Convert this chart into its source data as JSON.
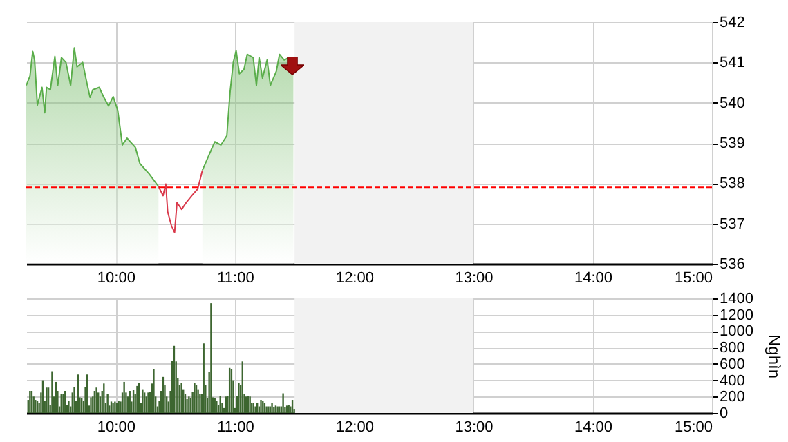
{
  "chart_data": [
    {
      "type": "area",
      "xlim": [
        9.25,
        15
      ],
      "xticks": [
        {
          "value": 10,
          "label": "10:00"
        },
        {
          "value": 11,
          "label": "11:00"
        },
        {
          "value": 12,
          "label": "12:00"
        },
        {
          "value": 13,
          "label": "13:00"
        },
        {
          "value": 14,
          "label": "14:00"
        },
        {
          "value": 15,
          "label": "15:00"
        }
      ],
      "ylim": [
        536,
        542
      ],
      "yticks": [
        536,
        537,
        538,
        539,
        540,
        541,
        542
      ],
      "grid": true,
      "ref_lines": [
        {
          "axis": "y",
          "value": 537.9,
          "color": "#ff0000",
          "line_style": "dashed"
        }
      ],
      "bands": [
        {
          "axis": "x",
          "from": 11.5,
          "to": 13,
          "color": "#f2f2f2"
        }
      ],
      "series": [
        {
          "type": "area",
          "color": "#5aad4a",
          "x": [
            9.25,
            9.281,
            9.304,
            9.32,
            9.343,
            9.382,
            9.405,
            9.42,
            9.452,
            9.49,
            9.514,
            9.545,
            9.583,
            9.622,
            9.653,
            9.676,
            9.723,
            9.754,
            9.785,
            9.808,
            9.862,
            9.901,
            9.94,
            9.979,
            10.017,
            10.056,
            10.095,
            10.165,
            10.203,
            10.281,
            10.359,
            10.397,
            10.42,
            10.436,
            10.467,
            10.494,
            10.514,
            10.553,
            10.591,
            10.638,
            10.688,
            10.727,
            10.785,
            10.831,
            10.882,
            10.932,
            10.959,
            10.986,
            11.01,
            11.037,
            11.076,
            11.103,
            11.153,
            11.18,
            11.203,
            11.231,
            11.27,
            11.297,
            11.347,
            11.374,
            11.413,
            11.452,
            11.49
          ],
          "values": [
            540.43,
            540.66,
            541.27,
            541.06,
            539.94,
            540.38,
            539.75,
            540.38,
            540.32,
            541.15,
            540.43,
            541.12,
            541.0,
            540.43,
            541.36,
            540.89,
            541.0,
            540.55,
            540.13,
            540.32,
            540.38,
            540.13,
            539.92,
            540.15,
            539.81,
            538.95,
            539.12,
            538.89,
            538.49,
            538.23,
            537.92,
            null,
            null,
            null,
            null,
            null,
            null,
            null,
            null,
            null,
            null,
            538.32,
            538.72,
            539.03,
            538.95,
            539.18,
            540.26,
            541.0,
            541.29,
            540.72,
            540.83,
            541.2,
            541.12,
            540.43,
            541.12,
            540.61,
            541.06,
            540.43,
            540.78,
            541.2,
            541.06,
            541.12,
            540.72
          ]
        },
        {
          "type": "line",
          "color": "#d9384a",
          "x": [
            10.359,
            10.397,
            10.42,
            10.436,
            10.467,
            10.494,
            10.514,
            10.553,
            10.591,
            10.638,
            10.688,
            10.727
          ],
          "values": [
            537.92,
            537.69,
            537.98,
            537.29,
            536.95,
            536.78,
            537.52,
            537.35,
            537.52,
            537.69,
            537.86,
            538.32
          ]
        }
      ]
    },
    {
      "type": "bar",
      "ylabel": "Nghìn",
      "xlim": [
        9.25,
        15
      ],
      "xticks": [
        {
          "value": 10,
          "label": "10:00"
        },
        {
          "value": 11,
          "label": "11:00"
        },
        {
          "value": 12,
          "label": "12:00"
        },
        {
          "value": 13,
          "label": "13:00"
        },
        {
          "value": 14,
          "label": "14:00"
        },
        {
          "value": 15,
          "label": "15:00"
        }
      ],
      "ylim": [
        0,
        1400
      ],
      "yticks": [
        0,
        200,
        400,
        600,
        800,
        1000,
        1200,
        1400
      ],
      "grid": true,
      "bands": [
        {
          "axis": "x",
          "from": 11.5,
          "to": 13,
          "color": "#f2f2f2"
        }
      ],
      "series": [
        {
          "color": "#3d6630",
          "x": [
            9.266,
            9.281,
            9.296,
            9.312,
            9.327,
            9.343,
            9.358,
            9.374,
            9.389,
            9.405,
            9.421,
            9.436,
            9.451,
            9.467,
            9.482,
            9.498,
            9.513,
            9.529,
            9.544,
            9.56,
            9.576,
            9.591,
            9.606,
            9.622,
            9.637,
            9.653,
            9.668,
            9.684,
            9.699,
            9.715,
            9.731,
            9.746,
            9.761,
            9.777,
            9.792,
            9.808,
            9.823,
            9.839,
            9.854,
            9.87,
            9.886,
            9.901,
            9.916,
            9.932,
            9.947,
            9.963,
            9.978,
            9.994,
            10.009,
            10.025,
            10.041,
            10.056,
            10.071,
            10.087,
            10.102,
            10.118,
            10.133,
            10.149,
            10.164,
            10.18,
            10.196,
            10.211,
            10.226,
            10.242,
            10.257,
            10.273,
            10.288,
            10.304,
            10.319,
            10.335,
            10.351,
            10.366,
            10.381,
            10.397,
            10.412,
            10.428,
            10.443,
            10.459,
            10.474,
            10.49,
            10.506,
            10.521,
            10.536,
            10.552,
            10.567,
            10.583,
            10.598,
            10.614,
            10.629,
            10.645,
            10.661,
            10.676,
            10.691,
            10.707,
            10.722,
            10.738,
            10.753,
            10.769,
            10.784,
            10.8,
            10.816,
            10.831,
            10.846,
            10.862,
            10.877,
            10.893,
            10.908,
            10.924,
            10.939,
            10.955,
            10.971,
            10.986,
            11.001,
            11.017,
            11.032,
            11.048,
            11.063,
            11.079,
            11.094,
            11.11,
            11.126,
            11.141,
            11.156,
            11.172,
            11.187,
            11.203,
            11.218,
            11.234,
            11.249,
            11.265,
            11.281,
            11.296,
            11.311,
            11.327,
            11.342,
            11.358,
            11.373,
            11.389,
            11.404,
            11.42,
            11.436,
            11.451,
            11.466,
            11.482,
            11.497
          ],
          "values": [
            160,
            270,
            270,
            200,
            160,
            150,
            120,
            250,
            400,
            150,
            310,
            310,
            100,
            510,
            200,
            380,
            270,
            80,
            230,
            230,
            270,
            100,
            150,
            80,
            250,
            320,
            150,
            470,
            190,
            180,
            150,
            320,
            470,
            90,
            190,
            200,
            270,
            310,
            250,
            200,
            270,
            360,
            120,
            230,
            90,
            140,
            120,
            140,
            120,
            150,
            140,
            250,
            380,
            250,
            200,
            270,
            140,
            280,
            230,
            330,
            370,
            120,
            290,
            250,
            200,
            250,
            260,
            360,
            540,
            200,
            80,
            150,
            270,
            440,
            340,
            200,
            140,
            270,
            640,
            820,
            630,
            430,
            340,
            370,
            290,
            230,
            170,
            200,
            180,
            260,
            370,
            340,
            290,
            230,
            230,
            850,
            340,
            180,
            500,
            1340,
            190,
            180,
            150,
            100,
            210,
            120,
            60,
            200,
            210,
            550,
            540,
            400,
            60,
            210,
            370,
            340,
            630,
            230,
            200,
            210,
            200,
            120,
            120,
            80,
            120,
            80,
            160,
            150,
            120,
            80,
            80,
            80,
            120,
            70,
            90,
            80,
            80,
            80,
            240,
            70,
            90,
            100,
            80,
            160,
            50
          ]
        }
      ]
    }
  ]
}
